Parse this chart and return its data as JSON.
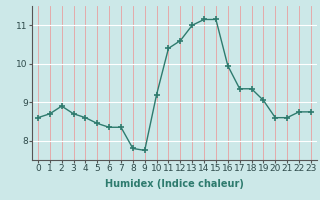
{
  "x": [
    0,
    1,
    2,
    3,
    4,
    5,
    6,
    7,
    8,
    9,
    10,
    11,
    12,
    13,
    14,
    15,
    16,
    17,
    18,
    19,
    20,
    21,
    22,
    23
  ],
  "y": [
    8.6,
    8.7,
    8.9,
    8.7,
    8.6,
    8.45,
    8.35,
    8.35,
    7.8,
    7.75,
    9.2,
    10.4,
    10.6,
    11.0,
    11.15,
    11.15,
    9.95,
    9.35,
    9.35,
    9.05,
    8.6,
    8.6,
    8.75,
    8.75
  ],
  "line_color": "#2e7b6e",
  "marker": "+",
  "marker_size": 4,
  "marker_linewidth": 1.2,
  "bg_color": "#cce8e8",
  "grid_color_h": "#ffffff",
  "grid_color_v": "#e8a0a0",
  "xlabel": "Humidex (Indice chaleur)",
  "xlim": [
    -0.5,
    23.5
  ],
  "ylim": [
    7.5,
    11.5
  ],
  "yticks": [
    8,
    9,
    10,
    11
  ],
  "xticks": [
    0,
    1,
    2,
    3,
    4,
    5,
    6,
    7,
    8,
    9,
    10,
    11,
    12,
    13,
    14,
    15,
    16,
    17,
    18,
    19,
    20,
    21,
    22,
    23
  ],
  "xlabel_fontsize": 7,
  "tick_fontsize": 6.5,
  "line_width": 1.0
}
